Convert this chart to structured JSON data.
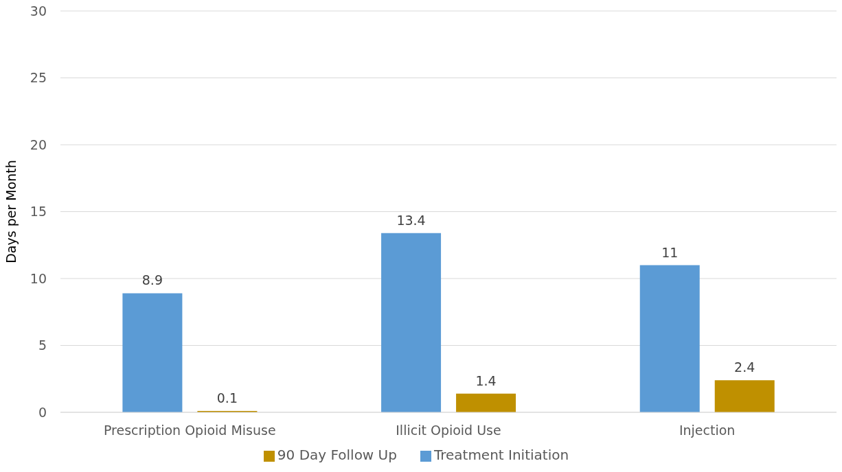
{
  "chart_data": {
    "type": "bar",
    "categories": [
      "Prescription Opioid Misuse",
      "Illicit Opioid Use",
      "Injection"
    ],
    "series": [
      {
        "name": "Treatment Initiation",
        "color": "#5b9bd5",
        "values": [
          8.9,
          13.4,
          11
        ]
      },
      {
        "name": "90 Day Follow Up",
        "color": "#bf9000",
        "values": [
          0.1,
          1.4,
          2.4
        ]
      }
    ],
    "ylabel": "Days per Month",
    "ylim": [
      0,
      30
    ],
    "yticks": [
      0,
      5,
      10,
      15,
      20,
      25,
      30
    ],
    "grid": "y",
    "legend": "bottom",
    "data_labels": true
  }
}
